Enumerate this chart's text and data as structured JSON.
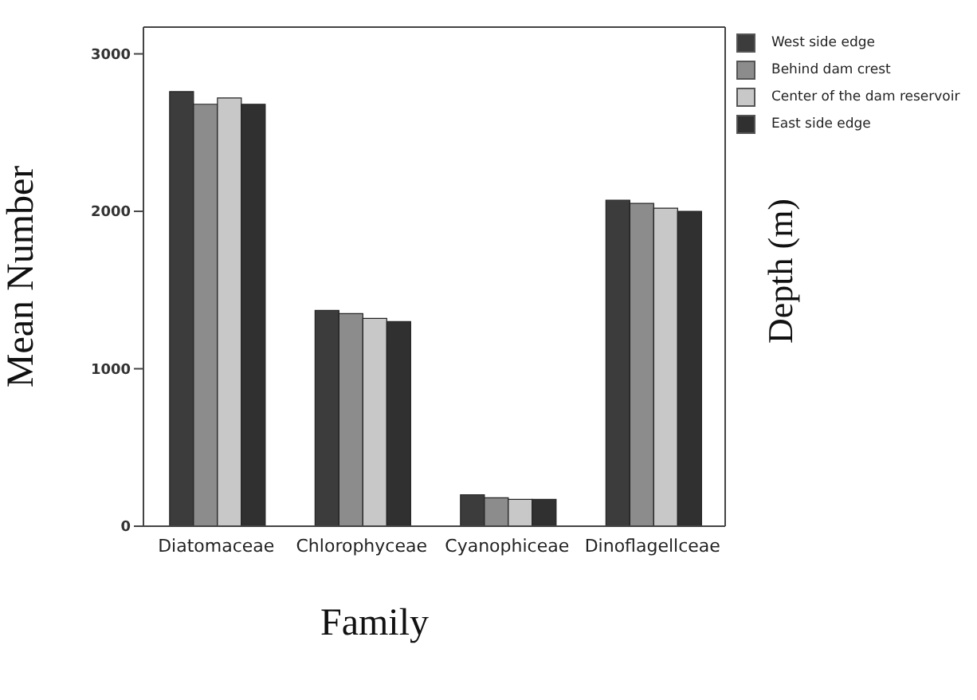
{
  "chart_data": {
    "type": "bar",
    "xlabel": "Family",
    "ylabel": "Mean Number",
    "legend_title": "Depth (m)",
    "categories": [
      "Diatomaceae",
      "Chlorophyceae",
      "Cyanophiceae",
      "Dinoflagellceae"
    ],
    "series": [
      {
        "name": "West side edge",
        "color": "#3c3c3c",
        "values": [
          2760,
          1370,
          200,
          2070
        ]
      },
      {
        "name": "Behind dam crest",
        "color": "#8c8c8c",
        "values": [
          2680,
          1350,
          180,
          2050
        ]
      },
      {
        "name": "Center of the dam reservoir",
        "color": "#c8c8c8",
        "values": [
          2720,
          1320,
          170,
          2020
        ]
      },
      {
        "name": "East side edge",
        "color": "#303030",
        "values": [
          2680,
          1300,
          170,
          2000
        ]
      }
    ],
    "ylim": [
      0,
      3170
    ],
    "yticks": [
      0,
      1000,
      2000,
      3000
    ],
    "grid": false,
    "legend": "top right"
  }
}
